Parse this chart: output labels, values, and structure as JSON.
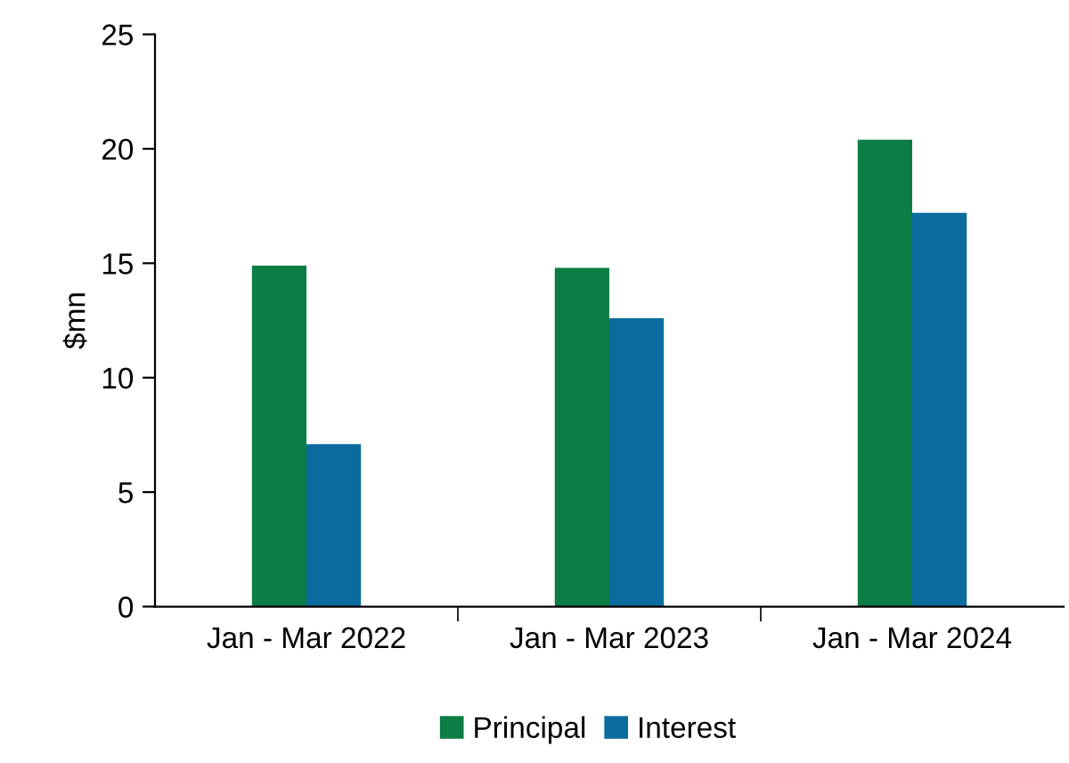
{
  "chart_data": {
    "type": "bar",
    "ylabel": "$mn",
    "categories": [
      "Jan - Mar 2022",
      "Jan - Mar 2023",
      "Jan - Mar 2024"
    ],
    "series": [
      {
        "name": "Principal",
        "color": "#0b7d45",
        "values": [
          14.9,
          14.8,
          20.4
        ]
      },
      {
        "name": "Interest",
        "color": "#0b6d9f",
        "values": [
          7.1,
          12.6,
          17.2
        ]
      }
    ],
    "ylim": [
      0,
      25
    ],
    "yticks": [
      0,
      5,
      10,
      15,
      20,
      25
    ],
    "grid": false,
    "legend": "bottom"
  }
}
